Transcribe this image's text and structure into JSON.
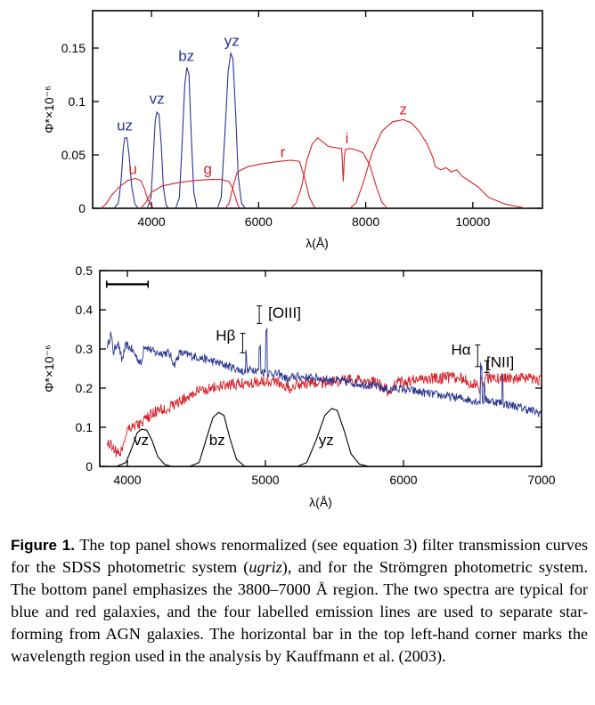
{
  "colors": {
    "stromgren": "#2a3590",
    "sdss": "#d6232a",
    "black": "#000000"
  },
  "caption": {
    "label": "Figure 1.",
    "part1": "The top panel shows renormalized (see equation 3) filter transmission curves for the SDSS photometric system (",
    "ugriz": "ugriz",
    "part2": "), and for the Strömgren photometric system. The bottom panel emphasizes the 3800–7000 Å region. The two spectra are typical for blue and red galaxies, and the four labelled emission lines are used to separate star-forming from AGN galaxies. The horizontal bar in the top left-hand corner marks the wavelength region used in the analysis by Kauffmann et al. (2003)."
  },
  "chart_data": [
    {
      "type": "line",
      "panel": "top",
      "xlabel": "λ(Å)",
      "ylabel": "Φ*×10⁻⁶",
      "xlim": [
        2900,
        11300
      ],
      "ylim": [
        0,
        0.185
      ],
      "xticks": [
        4000,
        6000,
        8000,
        10000
      ],
      "yticks": [
        0,
        0.05,
        0.1,
        0.15
      ],
      "ytick_labels": [
        "0",
        "0.05",
        "0.1",
        "0.15"
      ],
      "series": [
        {
          "name": "uz",
          "system": "stromgren",
          "label_at": [
            3500,
            0.073
          ],
          "points": [
            [
              3300,
              0
            ],
            [
              3380,
              0.005
            ],
            [
              3430,
              0.025
            ],
            [
              3470,
              0.055
            ],
            [
              3500,
              0.066
            ],
            [
              3540,
              0.066
            ],
            [
              3580,
              0.05
            ],
            [
              3630,
              0.02
            ],
            [
              3690,
              0.004
            ],
            [
              3750,
              0
            ]
          ]
        },
        {
          "name": "vz",
          "system": "stromgren",
          "label_at": [
            4100,
            0.098
          ],
          "points": [
            [
              3920,
              0
            ],
            [
              3990,
              0.01
            ],
            [
              4030,
              0.045
            ],
            [
              4070,
              0.082
            ],
            [
              4100,
              0.09
            ],
            [
              4140,
              0.088
            ],
            [
              4180,
              0.06
            ],
            [
              4220,
              0.02
            ],
            [
              4270,
              0.003
            ],
            [
              4320,
              0
            ]
          ]
        },
        {
          "name": "bz",
          "system": "stromgren",
          "label_at": [
            4650,
            0.138
          ],
          "points": [
            [
              4450,
              0
            ],
            [
              4520,
              0.01
            ],
            [
              4580,
              0.07
            ],
            [
              4620,
              0.115
            ],
            [
              4660,
              0.132
            ],
            [
              4700,
              0.125
            ],
            [
              4740,
              0.07
            ],
            [
              4790,
              0.015
            ],
            [
              4850,
              0
            ]
          ]
        },
        {
          "name": "yz",
          "system": "stromgren",
          "label_at": [
            5500,
            0.152
          ],
          "points": [
            [
              5230,
              0
            ],
            [
              5300,
              0.01
            ],
            [
              5370,
              0.07
            ],
            [
              5430,
              0.128
            ],
            [
              5480,
              0.145
            ],
            [
              5520,
              0.14
            ],
            [
              5570,
              0.09
            ],
            [
              5620,
              0.03
            ],
            [
              5680,
              0.005
            ],
            [
              5750,
              0
            ]
          ]
        },
        {
          "name": "u",
          "system": "sdss",
          "label_at": [
            3650,
            0.032
          ],
          "points": [
            [
              3050,
              0
            ],
            [
              3150,
              0.004
            ],
            [
              3250,
              0.012
            ],
            [
              3400,
              0.02
            ],
            [
              3550,
              0.026
            ],
            [
              3700,
              0.028
            ],
            [
              3800,
              0.026
            ],
            [
              3870,
              0.018
            ],
            [
              3930,
              0.008
            ],
            [
              4000,
              0.002
            ],
            [
              4050,
              0
            ]
          ]
        },
        {
          "name": "g",
          "system": "sdss",
          "label_at": [
            5050,
            0.032
          ],
          "points": [
            [
              3800,
              0
            ],
            [
              3900,
              0.006
            ],
            [
              4000,
              0.015
            ],
            [
              4200,
              0.021
            ],
            [
              4500,
              0.024
            ],
            [
              4800,
              0.026
            ],
            [
              5100,
              0.027
            ],
            [
              5300,
              0.027
            ],
            [
              5450,
              0.025
            ],
            [
              5520,
              0.018
            ],
            [
              5580,
              0.008
            ],
            [
              5620,
              0.002
            ],
            [
              5660,
              0
            ]
          ]
        },
        {
          "name": "r",
          "system": "sdss",
          "label_at": [
            6450,
            0.048
          ],
          "points": [
            [
              5380,
              0
            ],
            [
              5450,
              0.005
            ],
            [
              5520,
              0.02
            ],
            [
              5600,
              0.034
            ],
            [
              5800,
              0.039
            ],
            [
              6100,
              0.042
            ],
            [
              6400,
              0.044
            ],
            [
              6600,
              0.045
            ],
            [
              6760,
              0.044
            ],
            [
              6850,
              0.03
            ],
            [
              6950,
              0.01
            ],
            [
              7030,
              0.002
            ],
            [
              7080,
              0
            ]
          ]
        },
        {
          "name": "i",
          "system": "sdss",
          "label_at": [
            7650,
            0.061
          ],
          "points": [
            [
              6600,
              0
            ],
            [
              6700,
              0.005
            ],
            [
              6800,
              0.02
            ],
            [
              6900,
              0.045
            ],
            [
              7000,
              0.06
            ],
            [
              7100,
              0.066
            ],
            [
              7200,
              0.062
            ],
            [
              7300,
              0.058
            ],
            [
              7400,
              0.057
            ],
            [
              7550,
              0.056
            ],
            [
              7580,
              0.025
            ],
            [
              7600,
              0.048
            ],
            [
              7620,
              0.055
            ],
            [
              7700,
              0.056
            ],
            [
              7800,
              0.055
            ],
            [
              7950,
              0.052
            ],
            [
              8080,
              0.04
            ],
            [
              8200,
              0.02
            ],
            [
              8300,
              0.006
            ],
            [
              8400,
              0
            ]
          ]
        },
        {
          "name": "z",
          "system": "sdss",
          "label_at": [
            8700,
            0.088
          ],
          "points": [
            [
              7700,
              0
            ],
            [
              7820,
              0.005
            ],
            [
              7960,
              0.025
            ],
            [
              8120,
              0.052
            ],
            [
              8300,
              0.072
            ],
            [
              8500,
              0.081
            ],
            [
              8700,
              0.083
            ],
            [
              8850,
              0.08
            ],
            [
              9000,
              0.072
            ],
            [
              9150,
              0.06
            ],
            [
              9250,
              0.048
            ],
            [
              9300,
              0.039
            ],
            [
              9400,
              0.036
            ],
            [
              9500,
              0.038
            ],
            [
              9600,
              0.034
            ],
            [
              9700,
              0.036
            ],
            [
              9800,
              0.03
            ],
            [
              9950,
              0.025
            ],
            [
              10100,
              0.02
            ],
            [
              10300,
              0.01
            ],
            [
              10600,
              0.004
            ],
            [
              11000,
              0
            ]
          ]
        }
      ]
    },
    {
      "type": "line",
      "panel": "bottom",
      "xlabel": "λ(Å)",
      "ylabel": "Φ*×10⁻⁶",
      "xlim": [
        3800,
        7000
      ],
      "ylim": [
        0,
        0.5
      ],
      "xticks": [
        4000,
        5000,
        6000,
        7000
      ],
      "yticks": [
        0,
        0.1,
        0.2,
        0.3,
        0.4,
        0.5
      ],
      "ytick_labels": [
        "0",
        "0.1",
        "0.2",
        "0.3",
        "0.4",
        "0.5"
      ],
      "kauffmann_bar": [
        3850,
        4150
      ],
      "kauffmann_bar_y": 0.465,
      "lines": [
        {
          "label": "Hβ",
          "x": 4861,
          "y_range": [
            0.29,
            0.34
          ],
          "label_at": [
            4640,
            0.322
          ]
        },
        {
          "label": "[OIII]",
          "x": 5007,
          "y_range": [
            0.365,
            0.41
          ],
          "label_at": [
            5020,
            0.38
          ]
        },
        {
          "label": "Hα",
          "x": 6563,
          "y_range": [
            0.255,
            0.31
          ],
          "label_at": [
            6345,
            0.285
          ]
        },
        {
          "label": "[NII]",
          "x": 6584,
          "y_range": [
            0.24,
            0.27
          ],
          "label_at": [
            6600,
            0.253
          ]
        }
      ],
      "blue_spectrum": [
        [
          3860,
          0.31
        ],
        [
          3880,
          0.34
        ],
        [
          3900,
          0.29
        ],
        [
          3930,
          0.32
        ],
        [
          3960,
          0.27
        ],
        [
          3990,
          0.31
        ],
        [
          4030,
          0.3
        ],
        [
          4102,
          0.26
        ],
        [
          4120,
          0.31
        ],
        [
          4200,
          0.29
        ],
        [
          4300,
          0.29
        ],
        [
          4340,
          0.26
        ],
        [
          4380,
          0.29
        ],
        [
          4500,
          0.28
        ],
        [
          4600,
          0.27
        ],
        [
          4700,
          0.26
        ],
        [
          4861,
          0.24
        ],
        [
          4900,
          0.25
        ],
        [
          5000,
          0.24
        ],
        [
          5100,
          0.235
        ],
        [
          5175,
          0.22
        ],
        [
          5200,
          0.23
        ],
        [
          5400,
          0.225
        ],
        [
          5600,
          0.215
        ],
        [
          5800,
          0.205
        ],
        [
          5893,
          0.195
        ],
        [
          5950,
          0.2
        ],
        [
          6200,
          0.185
        ],
        [
          6400,
          0.175
        ],
        [
          6563,
          0.165
        ],
        [
          6600,
          0.17
        ],
        [
          6800,
          0.155
        ],
        [
          7000,
          0.135
        ]
      ],
      "red_spectrum": [
        [
          3860,
          0.06
        ],
        [
          3900,
          0.05
        ],
        [
          3934,
          0.03
        ],
        [
          3968,
          0.05
        ],
        [
          4000,
          0.1
        ],
        [
          4100,
          0.11
        ],
        [
          4200,
          0.14
        ],
        [
          4300,
          0.15
        ],
        [
          4400,
          0.17
        ],
        [
          4500,
          0.19
        ],
        [
          4600,
          0.2
        ],
        [
          4700,
          0.205
        ],
        [
          4800,
          0.21
        ],
        [
          4900,
          0.215
        ],
        [
          5000,
          0.22
        ],
        [
          5100,
          0.215
        ],
        [
          5175,
          0.2
        ],
        [
          5200,
          0.21
        ],
        [
          5400,
          0.215
        ],
        [
          5600,
          0.22
        ],
        [
          5800,
          0.215
        ],
        [
          5893,
          0.19
        ],
        [
          5950,
          0.215
        ],
        [
          6200,
          0.225
        ],
        [
          6400,
          0.228
        ],
        [
          6563,
          0.2
        ],
        [
          6600,
          0.225
        ],
        [
          6800,
          0.225
        ],
        [
          7000,
          0.22
        ]
      ],
      "filters": [
        {
          "name": "vz",
          "label_at": [
            4100,
            0.055
          ],
          "points": [
            [
              3920,
              0
            ],
            [
              3990,
              0.01
            ],
            [
              4030,
              0.045
            ],
            [
              4070,
              0.085
            ],
            [
              4100,
              0.095
            ],
            [
              4140,
              0.093
            ],
            [
              4180,
              0.065
            ],
            [
              4220,
              0.025
            ],
            [
              4270,
              0.005
            ],
            [
              4320,
              0
            ]
          ]
        },
        {
          "name": "bz",
          "label_at": [
            4650,
            0.055
          ],
          "points": [
            [
              4450,
              0
            ],
            [
              4520,
              0.01
            ],
            [
              4580,
              0.08
            ],
            [
              4620,
              0.125
            ],
            [
              4660,
              0.138
            ],
            [
              4700,
              0.13
            ],
            [
              4740,
              0.075
            ],
            [
              4790,
              0.018
            ],
            [
              4850,
              0
            ]
          ]
        },
        {
          "name": "yz",
          "label_at": [
            5440,
            0.055
          ],
          "points": [
            [
              5230,
              0
            ],
            [
              5300,
              0.01
            ],
            [
              5370,
              0.07
            ],
            [
              5430,
              0.13
            ],
            [
              5480,
              0.148
            ],
            [
              5520,
              0.143
            ],
            [
              5570,
              0.092
            ],
            [
              5620,
              0.032
            ],
            [
              5680,
              0.006
            ],
            [
              5750,
              0
            ]
          ]
        }
      ]
    }
  ]
}
